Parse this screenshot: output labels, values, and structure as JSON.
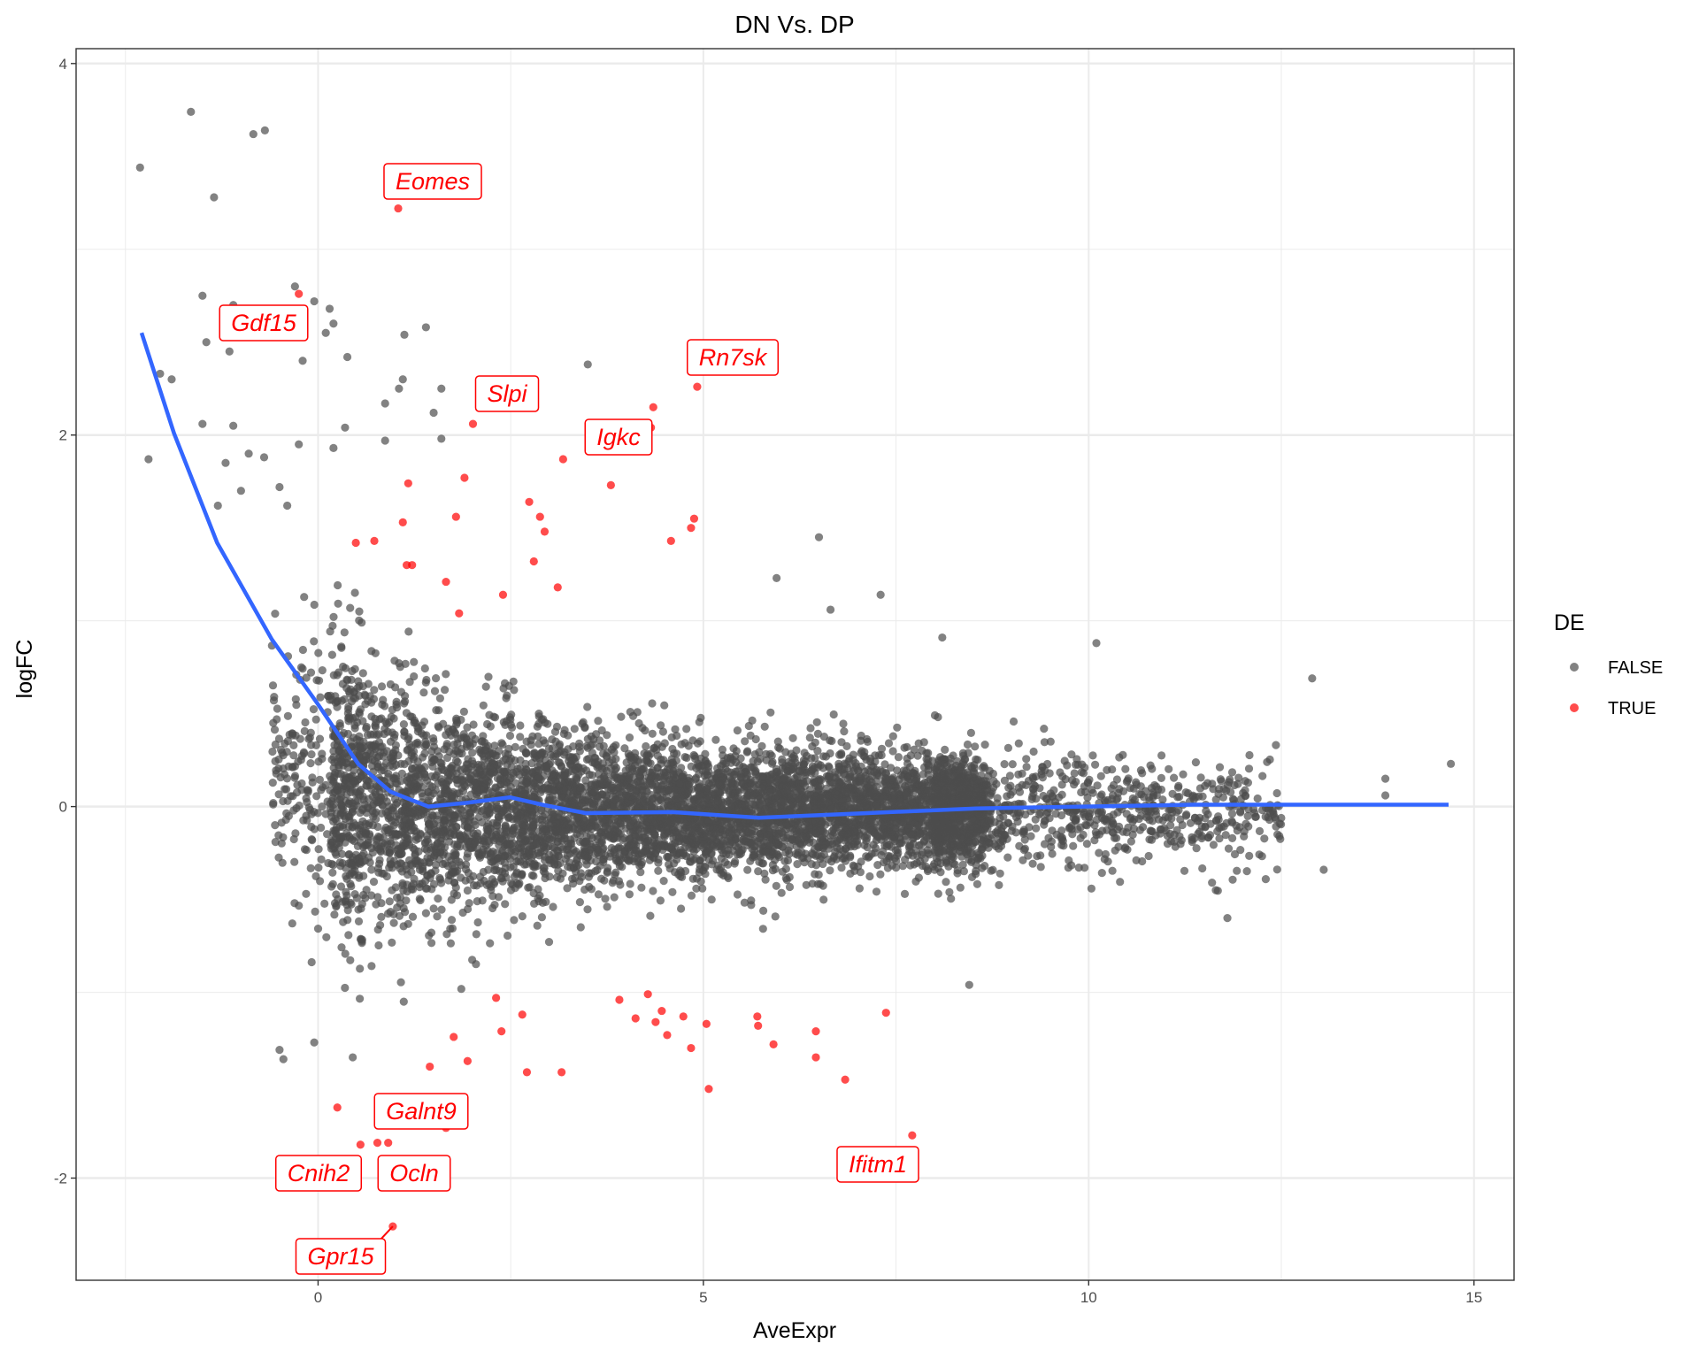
{
  "chart_data": {
    "type": "scatter",
    "title": "DN Vs. DP",
    "xlabel": "AveExpr",
    "ylabel": "logFC",
    "xlim": [
      -3.14,
      15.52
    ],
    "ylim": [
      -2.55,
      4.08
    ],
    "x_ticks": [
      "0",
      "5",
      "10",
      "15"
    ],
    "y_ticks": [
      "-2",
      "0",
      "2",
      "4"
    ],
    "grid": true,
    "legend": {
      "title": "DE",
      "position": "right",
      "entries": [
        "FALSE",
        "TRUE"
      ]
    },
    "colors": {
      "FALSE": "#4d4d4d",
      "TRUE": "#ff0000",
      "smooth": "#3366ff"
    },
    "series": [
      {
        "name": "FALSE",
        "note_points": "outliers listed; dense central cloud (~7000 genes, AveExpr 0-12, logFC mostly within -1..1) rendered as a cloud",
        "points": [
          [
            -2.31,
            3.44
          ],
          [
            -1.65,
            3.74
          ],
          [
            -1.35,
            3.28
          ],
          [
            -0.84,
            3.62
          ],
          [
            -0.69,
            3.64
          ],
          [
            -1.5,
            2.75
          ],
          [
            -1.45,
            2.5
          ],
          [
            -1.1,
            2.7
          ],
          [
            -1.15,
            2.45
          ],
          [
            -0.3,
            2.8
          ],
          [
            -0.05,
            2.72
          ],
          [
            0.15,
            2.68
          ],
          [
            0.2,
            2.6
          ],
          [
            0.1,
            2.55
          ],
          [
            -0.2,
            2.4
          ],
          [
            0.38,
            2.42
          ],
          [
            1.12,
            2.54
          ],
          [
            1.4,
            2.58
          ],
          [
            3.5,
            2.38
          ],
          [
            -2.05,
            2.33
          ],
          [
            -1.9,
            2.3
          ],
          [
            -2.2,
            1.87
          ],
          [
            -1.5,
            2.06
          ],
          [
            -1.1,
            2.05
          ],
          [
            1.1,
            2.3
          ],
          [
            1.05,
            2.25
          ],
          [
            1.6,
            2.25
          ],
          [
            1.5,
            2.12
          ],
          [
            0.35,
            2.04
          ],
          [
            0.87,
            2.17
          ],
          [
            0.87,
            1.97
          ],
          [
            1.6,
            1.98
          ],
          [
            -1.2,
            1.85
          ],
          [
            -0.9,
            1.9
          ],
          [
            -0.7,
            1.88
          ],
          [
            -0.25,
            1.95
          ],
          [
            0.2,
            1.93
          ],
          [
            -1.3,
            1.62
          ],
          [
            -1.0,
            1.7
          ],
          [
            -0.5,
            1.72
          ],
          [
            -0.4,
            1.62
          ],
          [
            12.9,
            0.69
          ],
          [
            13.85,
            0.15
          ],
          [
            13.85,
            0.06
          ],
          [
            14.7,
            0.23
          ],
          [
            13.05,
            -0.34
          ],
          [
            12.45,
            -0.15
          ],
          [
            6.5,
            1.45
          ],
          [
            7.3,
            1.14
          ],
          [
            8.1,
            0.91
          ],
          [
            10.1,
            0.88
          ],
          [
            5.95,
            1.23
          ],
          [
            6.65,
            1.06
          ],
          [
            -0.5,
            -1.31
          ],
          [
            -0.45,
            -1.36
          ],
          [
            0.45,
            -1.35
          ],
          [
            -0.05,
            -1.27
          ],
          [
            8.45,
            -0.96
          ],
          [
            11.8,
            -0.6
          ],
          [
            11.65,
            -0.45
          ]
        ]
      },
      {
        "name": "TRUE",
        "points": [
          [
            1.04,
            3.22
          ],
          [
            -0.25,
            2.76
          ],
          [
            4.92,
            2.26
          ],
          [
            4.35,
            2.15
          ],
          [
            4.32,
            2.04
          ],
          [
            2.01,
            2.06
          ],
          [
            3.18,
            1.87
          ],
          [
            3.8,
            1.73
          ],
          [
            1.9,
            1.77
          ],
          [
            1.17,
            1.74
          ],
          [
            1.79,
            1.56
          ],
          [
            2.74,
            1.64
          ],
          [
            2.88,
            1.56
          ],
          [
            2.94,
            1.48
          ],
          [
            1.1,
            1.53
          ],
          [
            4.88,
            1.55
          ],
          [
            4.84,
            1.5
          ],
          [
            4.58,
            1.43
          ],
          [
            0.73,
            1.43
          ],
          [
            0.49,
            1.42
          ],
          [
            2.8,
            1.32
          ],
          [
            1.15,
            1.3
          ],
          [
            1.22,
            1.3
          ],
          [
            3.11,
            1.18
          ],
          [
            1.66,
            1.21
          ],
          [
            2.4,
            1.14
          ],
          [
            1.83,
            1.04
          ],
          [
            2.31,
            -1.03
          ],
          [
            2.38,
            -1.21
          ],
          [
            2.65,
            -1.12
          ],
          [
            3.91,
            -1.04
          ],
          [
            4.12,
            -1.14
          ],
          [
            4.28,
            -1.01
          ],
          [
            4.38,
            -1.16
          ],
          [
            4.46,
            -1.1
          ],
          [
            4.53,
            -1.23
          ],
          [
            4.74,
            -1.13
          ],
          [
            4.84,
            -1.3
          ],
          [
            5.04,
            -1.17
          ],
          [
            5.07,
            -1.52
          ],
          [
            5.7,
            -1.13
          ],
          [
            5.71,
            -1.18
          ],
          [
            5.91,
            -1.28
          ],
          [
            6.46,
            -1.21
          ],
          [
            6.46,
            -1.35
          ],
          [
            6.84,
            -1.47
          ],
          [
            7.37,
            -1.11
          ],
          [
            7.71,
            -1.77
          ],
          [
            2.71,
            -1.43
          ],
          [
            3.16,
            -1.43
          ],
          [
            1.45,
            -1.4
          ],
          [
            1.76,
            -1.24
          ],
          [
            1.94,
            -1.37
          ],
          [
            0.25,
            -1.62
          ],
          [
            0.55,
            -1.82
          ],
          [
            1.66,
            -1.73
          ],
          [
            0.91,
            -1.81
          ],
          [
            0.77,
            -1.81
          ],
          [
            0.97,
            -2.26
          ]
        ]
      }
    ],
    "smooth_line": [
      [
        -2.29,
        2.55
      ],
      [
        -1.87,
        2.01
      ],
      [
        -1.31,
        1.42
      ],
      [
        -0.6,
        0.9
      ],
      [
        0,
        0.55
      ],
      [
        0.52,
        0.23
      ],
      [
        0.94,
        0.08
      ],
      [
        1.43,
        0.0
      ],
      [
        1.93,
        0.02
      ],
      [
        2.49,
        0.05
      ],
      [
        2.91,
        0.01
      ],
      [
        3.47,
        -0.035
      ],
      [
        4.6,
        -0.03
      ],
      [
        5.72,
        -0.06
      ],
      [
        7.13,
        -0.035
      ],
      [
        8.54,
        -0.01
      ],
      [
        9.94,
        0.0
      ],
      [
        11.35,
        0.01
      ],
      [
        14.67,
        0.01
      ]
    ],
    "labels": [
      {
        "text": "Eomes",
        "x": 1.04,
        "y": 3.22
      },
      {
        "text": "Gdf15",
        "x": -0.25,
        "y": 2.76
      },
      {
        "text": "Rn7sk",
        "x": 4.92,
        "y": 2.26
      },
      {
        "text": "Slpi",
        "x": 2.01,
        "y": 2.06
      },
      {
        "text": "Igkc",
        "x": 4.32,
        "y": 2.04
      },
      {
        "text": "Galnt9",
        "x": 1.66,
        "y": -1.73
      },
      {
        "text": "Cnih2",
        "x": 0.55,
        "y": -1.82
      },
      {
        "text": "Ocln",
        "x": 0.91,
        "y": -1.81
      },
      {
        "text": "Ifitm1",
        "x": 7.71,
        "y": -1.77
      },
      {
        "text": "Gpr15",
        "x": 0.97,
        "y": -2.26
      }
    ]
  }
}
